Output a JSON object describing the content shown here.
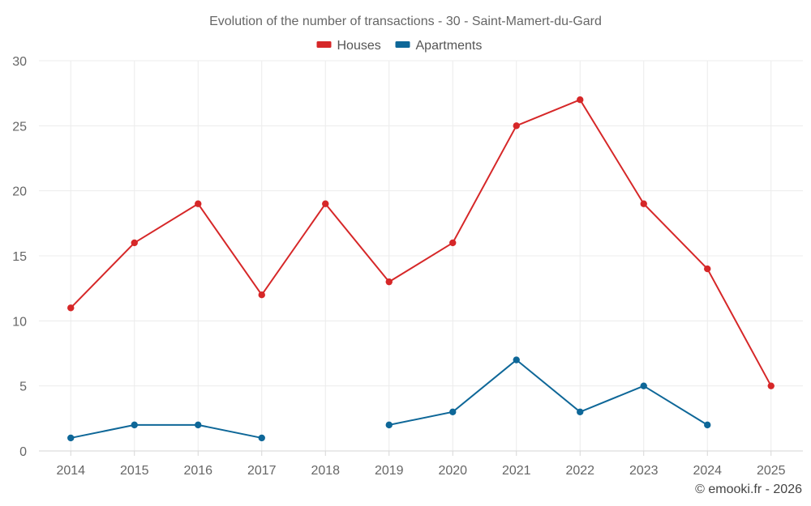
{
  "chart_data": {
    "type": "line",
    "title": "Evolution of the number of transactions - 30 - Saint-Mamert-du-Gard",
    "categories": [
      "2014",
      "2015",
      "2016",
      "2017",
      "2018",
      "2019",
      "2020",
      "2021",
      "2022",
      "2023",
      "2024",
      "2025"
    ],
    "ylim": [
      0,
      30
    ],
    "yticks": [
      "0",
      "5",
      "10",
      "15",
      "20",
      "25",
      "30"
    ],
    "grid": true,
    "legend_position": "top-center",
    "series": [
      {
        "name": "Houses",
        "color": "#d62728",
        "values": [
          11,
          16,
          19,
          12,
          19,
          13,
          16,
          25,
          27,
          19,
          14,
          5
        ]
      },
      {
        "name": "Apartments",
        "color": "#0e6798",
        "values": [
          1,
          2,
          2,
          1,
          null,
          2,
          3,
          7,
          3,
          5,
          2,
          null
        ]
      }
    ],
    "credit": "© emooki.fr - 2026"
  }
}
